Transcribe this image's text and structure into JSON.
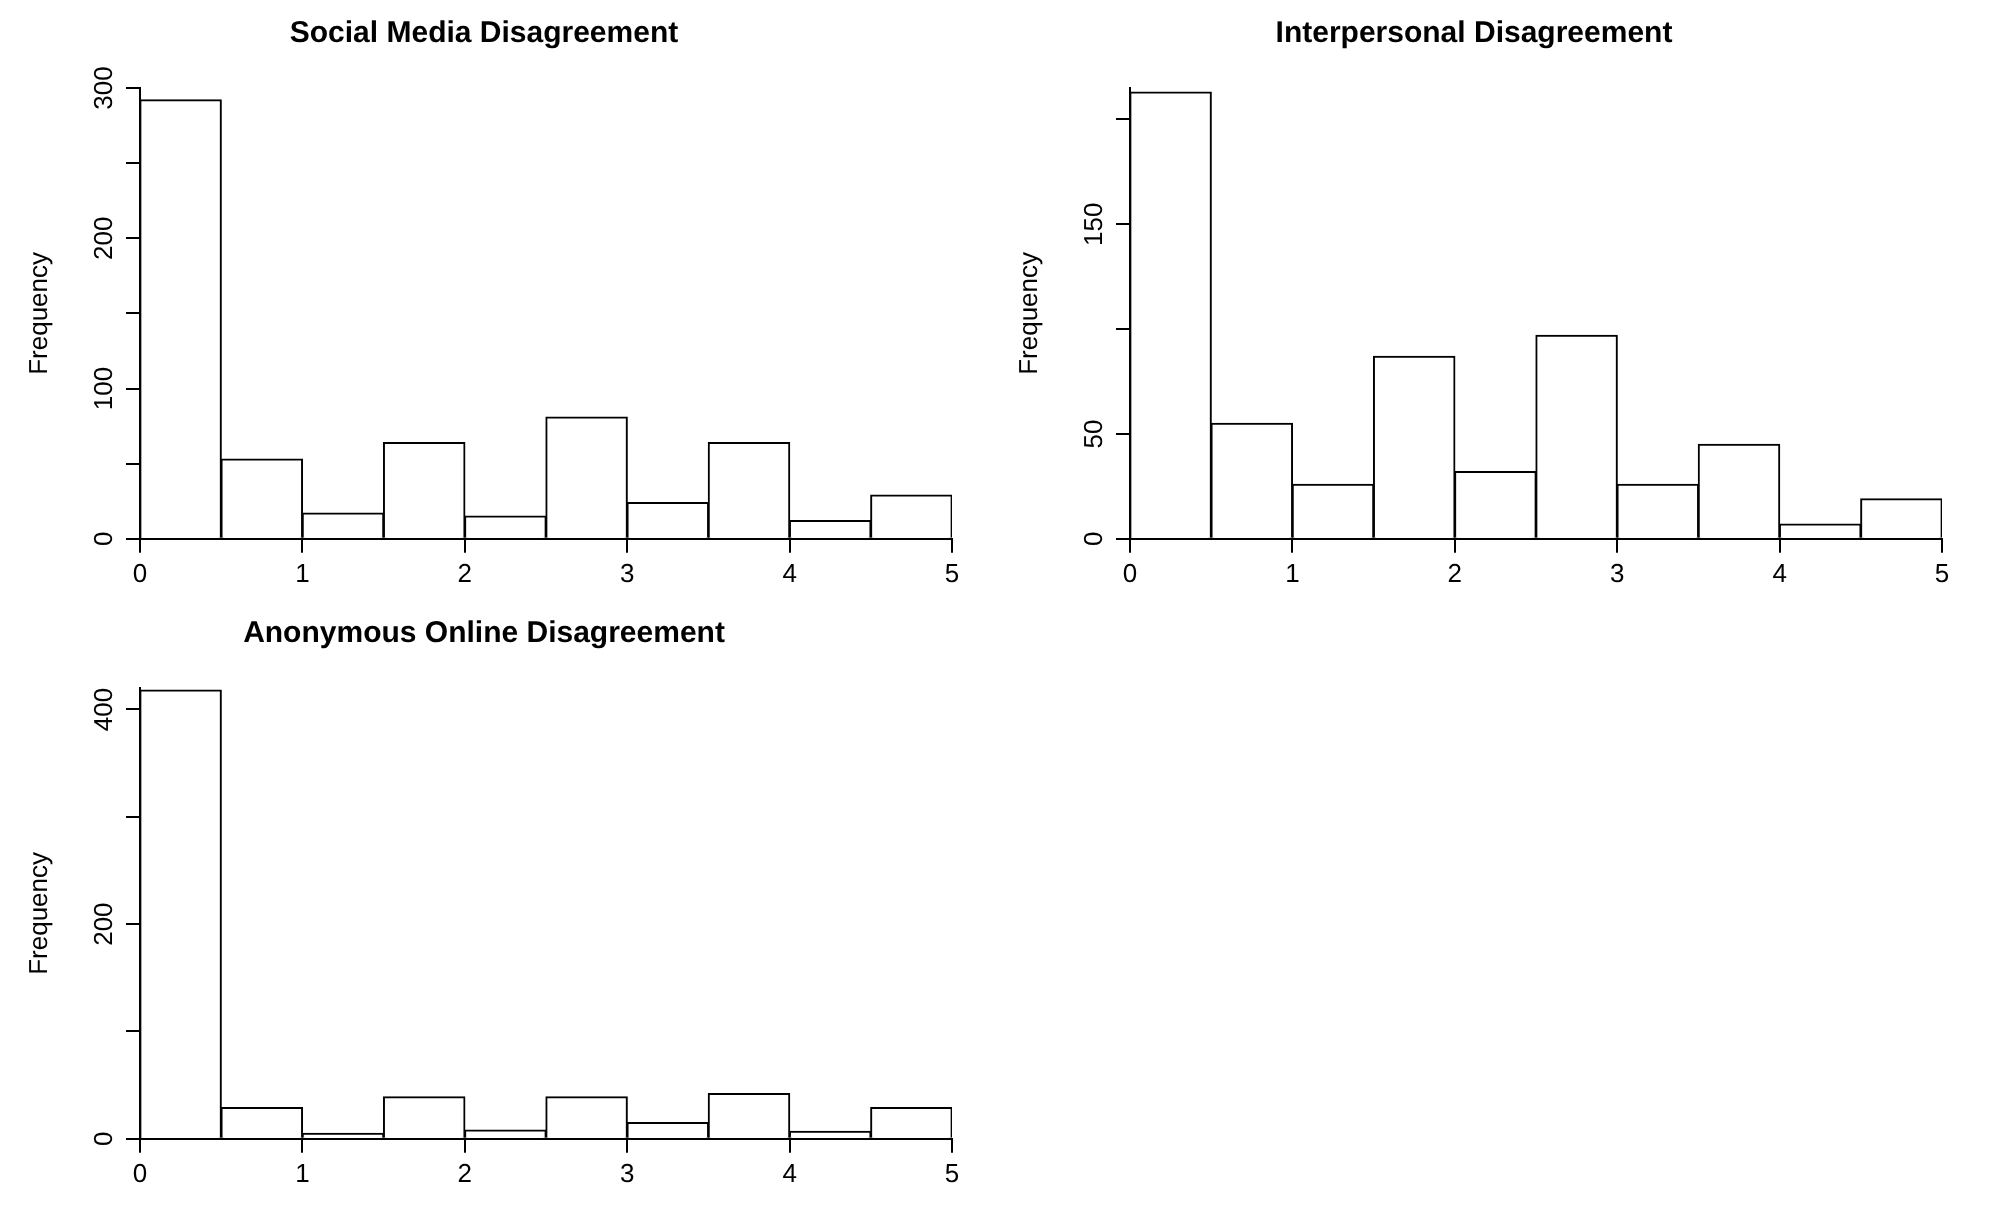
{
  "chart_data": [
    {
      "type": "histogram",
      "title": "Social Media Disagreement",
      "ylabel": "Frequency",
      "bins": [
        0,
        0.5,
        1,
        1.5,
        2,
        2.5,
        3,
        3.5,
        4,
        4.5,
        5
      ],
      "values": [
        292,
        53,
        17,
        64,
        15,
        81,
        24,
        64,
        12,
        29
      ],
      "color": "#ffffff",
      "xlim": [
        0,
        5
      ],
      "xticks": [
        0,
        1,
        2,
        3,
        4,
        5
      ],
      "ylim": [
        0,
        300
      ],
      "yticks": [
        0,
        {
          "value": 50,
          "label": null
        },
        100,
        {
          "value": 150,
          "label": null
        },
        200,
        {
          "value": 250,
          "label": null
        },
        300
      ]
    },
    {
      "type": "histogram",
      "title": "Interpersonal Disagreement",
      "ylabel": "Frequency",
      "bins": [
        0,
        0.5,
        1,
        1.5,
        2,
        2.5,
        3,
        3.5,
        4,
        4.5,
        5
      ],
      "values": [
        213,
        55,
        26,
        87,
        32,
        97,
        26,
        45,
        7,
        19
      ],
      "color": "#ffffff",
      "xlim": [
        0,
        5
      ],
      "xticks": [
        0,
        1,
        2,
        3,
        4,
        5
      ],
      "ylim": [
        0,
        215
      ],
      "yticks": [
        0,
        50,
        {
          "value": 100,
          "label": null
        },
        150,
        {
          "value": 200,
          "label": null
        }
      ]
    },
    {
      "type": "histogram",
      "title": "Anonymous Online Disagreement",
      "ylabel": "Frequency",
      "bins": [
        0,
        0.5,
        1,
        1.5,
        2,
        2.5,
        3,
        3.5,
        4,
        4.5,
        5
      ],
      "values": [
        418,
        29,
        5,
        39,
        8,
        39,
        15,
        42,
        7,
        29
      ],
      "color": "#ffffff",
      "xlim": [
        0,
        5
      ],
      "xticks": [
        0,
        1,
        2,
        3,
        4,
        5
      ],
      "ylim": [
        0,
        420
      ],
      "yticks": [
        0,
        {
          "value": 100,
          "label": null
        },
        200,
        {
          "value": 300,
          "label": null
        },
        400
      ]
    }
  ]
}
